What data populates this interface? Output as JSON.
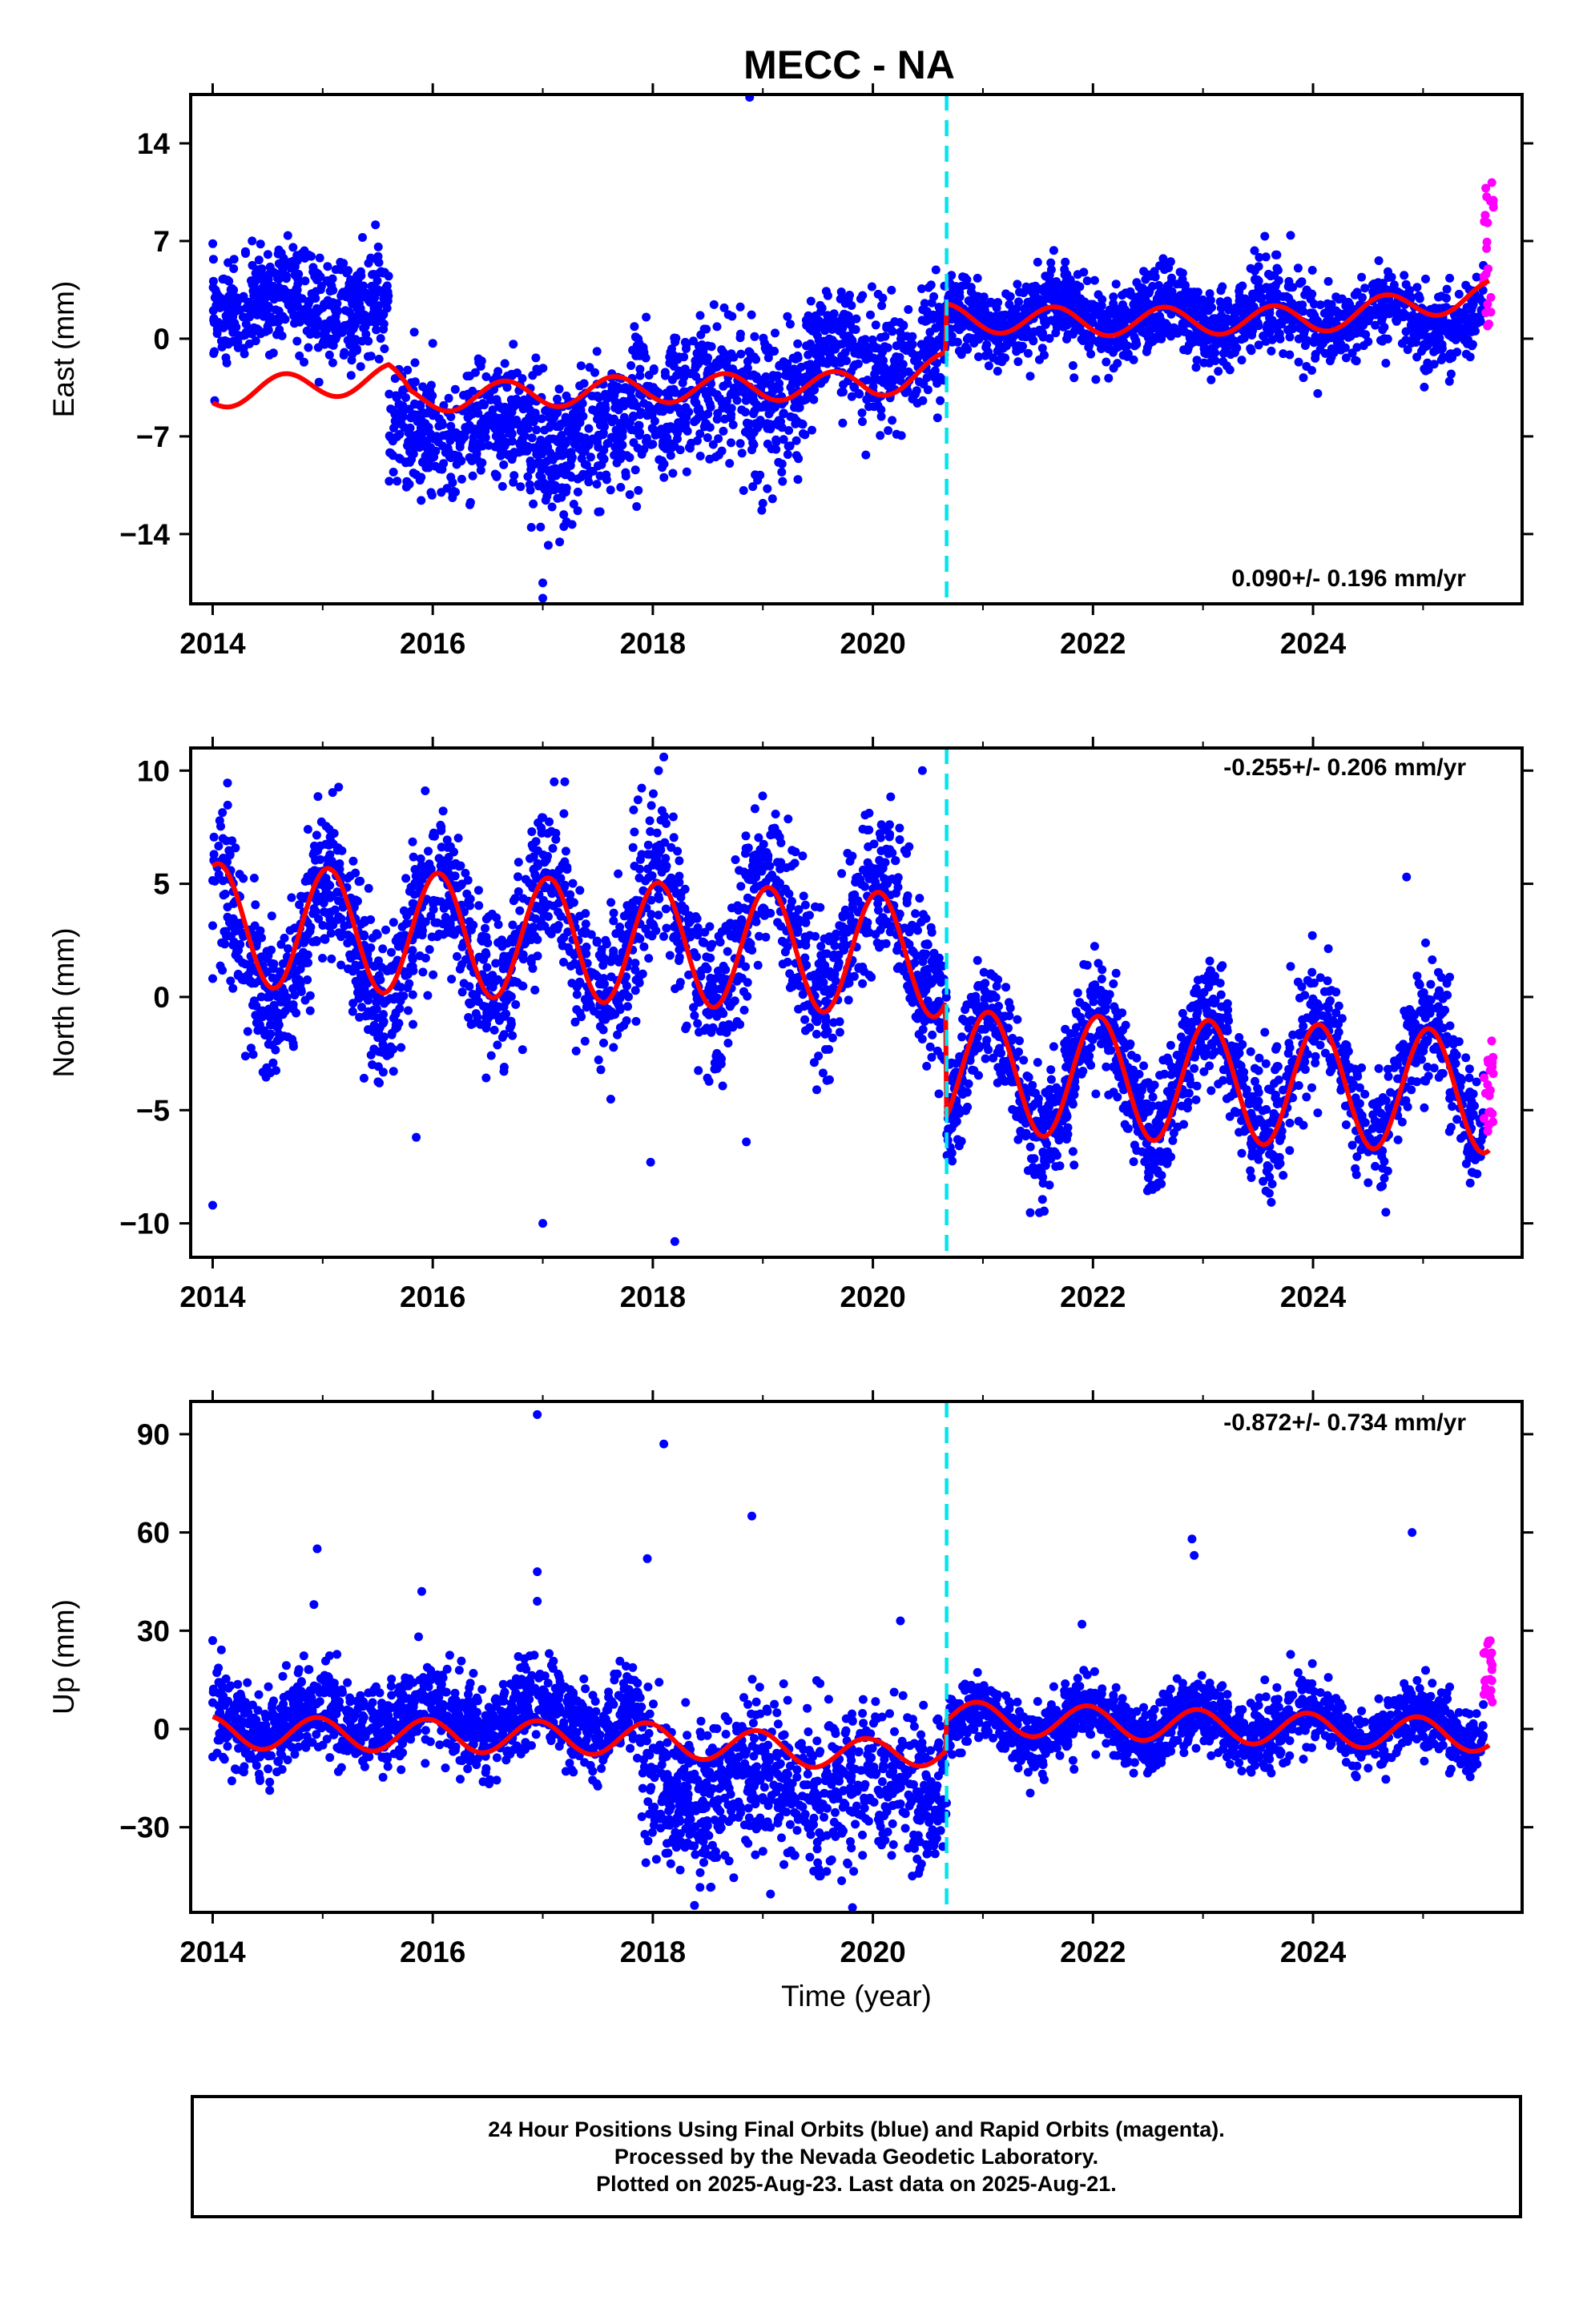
{
  "title": "MECC - NA",
  "xlabel": "Time (year)",
  "colors": {
    "final": "#0000ff",
    "rapid": "#ff00ff",
    "model": "#ff0000",
    "offset": "#00e5ee"
  },
  "caption": [
    "24 Hour Positions Using Final Orbits (blue) and Rapid Orbits (magenta).",
    "Processed by the Nevada Geodetic Laboratory.",
    "Plotted on 2025-Aug-23. Last data on 2025-Aug-21."
  ],
  "chart_data": [
    {
      "type": "scatter",
      "panel": "east",
      "ylabel": "East (mm)",
      "rate_label": "0.090+/- 0.196 mm/yr",
      "xlim": [
        2013.8,
        2025.9
      ],
      "ylim": [
        -19,
        17.5
      ],
      "xticks": [
        2014,
        2016,
        2018,
        2020,
        2022,
        2024
      ],
      "yticks": [
        14,
        7,
        0,
        -7,
        -14
      ],
      "offset_x": 2020.67,
      "segments": [
        {
          "x0": 2014.0,
          "x1": 2015.6,
          "level": 2.5,
          "noise": 1.8
        },
        {
          "x0": 2015.6,
          "x1": 2017.8,
          "level": -7.0,
          "noise": 2.3
        },
        {
          "x0": 2017.8,
          "x1": 2019.4,
          "level": -4.0,
          "noise": 2.5
        },
        {
          "x0": 2019.4,
          "x1": 2020.67,
          "level": -1.5,
          "noise": 2.2
        },
        {
          "x0": 2020.67,
          "x1": 2025.55,
          "level": 1.5,
          "noise": 1.4
        }
      ],
      "seasonal": {
        "amp": 1.0,
        "phase": 0.6
      },
      "model": {
        "x": [
          2014.0,
          2015.6,
          2015.8,
          2018.0,
          2020.0,
          2020.66,
          2020.67,
          2022.0,
          2024.0,
          2025.6
        ],
        "y": [
          -4.0,
          -2.8,
          -4.3,
          -3.6,
          -3.3,
          -2.0,
          1.5,
          1.2,
          1.4,
          3.2
        ]
      },
      "outliers": [
        [
          2018.88,
          17.3
        ],
        [
          2017.0,
          -17.5
        ],
        [
          2017.0,
          -18.6
        ],
        [
          2016.98,
          -13.5
        ],
        [
          2017.05,
          -14.8
        ],
        [
          2019.0,
          -11.8
        ],
        [
          2018.99,
          -12.3
        ]
      ],
      "rapid": {
        "x0": 2025.55,
        "x1": 2025.64,
        "y0": 0.8,
        "y1": 11.2
      }
    },
    {
      "type": "scatter",
      "panel": "north",
      "ylabel": "North (mm)",
      "rate_label": "-0.255+/- 0.206 mm/yr",
      "xlim": [
        2013.8,
        2025.9
      ],
      "ylim": [
        -11.5,
        11
      ],
      "xticks": [
        2014,
        2016,
        2018,
        2020,
        2022,
        2024
      ],
      "yticks": [
        10,
        5,
        0,
        -5,
        -10
      ],
      "offset_x": 2020.67,
      "segments": [
        {
          "x0": 2014.0,
          "x1": 2020.67,
          "level": 2.5,
          "noise": 1.7
        },
        {
          "x0": 2020.67,
          "x1": 2025.55,
          "level": -3.5,
          "noise": 1.3
        }
      ],
      "seasonal": {
        "amp": 2.7,
        "phase": 0.2
      },
      "model": {
        "x": [
          2014.0,
          2020.66,
          2020.67,
          2025.6
        ],
        "y": [
          3.2,
          1.8,
          -3.3,
          -4.2
        ]
      },
      "outliers": [
        [
          2014.0,
          -9.2
        ],
        [
          2017.0,
          -10.0
        ],
        [
          2018.2,
          -10.8
        ],
        [
          2018.1,
          10.6
        ],
        [
          2020.45,
          10.0
        ],
        [
          2024.85,
          5.3
        ],
        [
          2015.85,
          -6.2
        ],
        [
          2017.98,
          -7.3
        ],
        [
          2018.85,
          -6.4
        ]
      ],
      "rapid": {
        "x0": 2025.55,
        "x1": 2025.64,
        "y0": -6.2,
        "y1": -1.3
      }
    },
    {
      "type": "scatter",
      "panel": "up",
      "ylabel": "Up (mm)",
      "rate_label": "-0.872+/- 0.734 mm/yr",
      "xlim": [
        2013.8,
        2025.9
      ],
      "ylim": [
        -56,
        100
      ],
      "xticks": [
        2014,
        2016,
        2018,
        2020,
        2022,
        2024
      ],
      "yticks": [
        90,
        60,
        30,
        0,
        -30
      ],
      "offset_x": 2020.67,
      "segments": [
        {
          "x0": 2014.0,
          "x1": 2017.9,
          "level": 3.0,
          "noise": 6.5
        },
        {
          "x0": 2017.9,
          "x1": 2020.67,
          "level": -18.0,
          "noise": 12.0
        },
        {
          "x0": 2020.67,
          "x1": 2025.55,
          "level": 1.0,
          "noise": 5.0
        }
      ],
      "seasonal": {
        "amp": 5.0,
        "phase": 0.3
      },
      "model": {
        "x": [
          2014.0,
          2017.9,
          2020.0,
          2020.66,
          2020.67,
          2025.6
        ],
        "y": [
          -1.0,
          -3.0,
          -8.0,
          -5.5,
          3.5,
          -2.0
        ]
      },
      "outliers": [
        [
          2016.95,
          96.0
        ],
        [
          2018.1,
          87.0
        ],
        [
          2014.95,
          55.0
        ],
        [
          2018.9,
          65.0
        ],
        [
          2017.95,
          52.0
        ],
        [
          2022.9,
          58.0
        ],
        [
          2022.92,
          53.0
        ],
        [
          2024.9,
          60.0
        ],
        [
          2016.95,
          48.0
        ],
        [
          2014.92,
          38.0
        ],
        [
          2015.9,
          42.0
        ],
        [
          2016.95,
          39.0
        ],
        [
          2020.25,
          33.0
        ],
        [
          2014.0,
          27.0
        ],
        [
          2021.9,
          32.0
        ]
      ],
      "rapid": {
        "x0": 2025.55,
        "x1": 2025.64,
        "y0": 8.0,
        "y1": 29.0
      }
    }
  ]
}
